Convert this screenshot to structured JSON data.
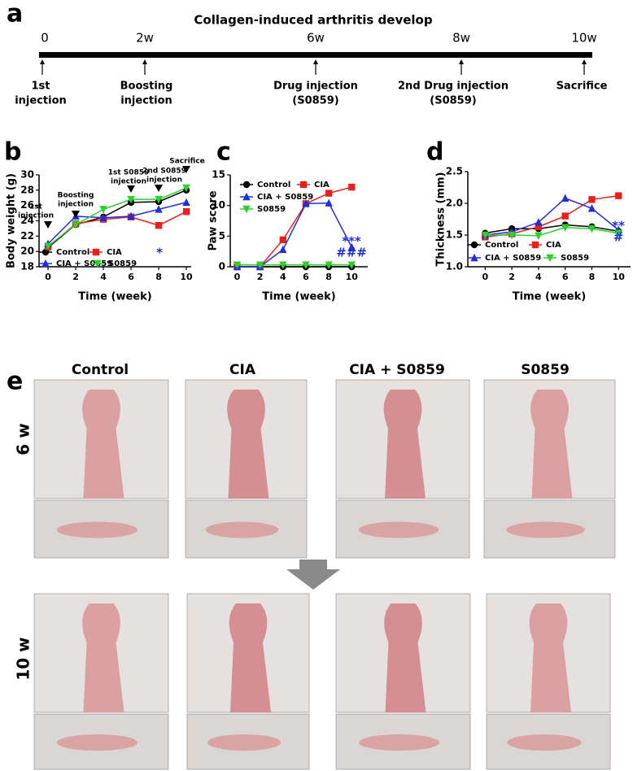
{
  "timeline": {
    "label": "a",
    "title": "Collagen-induced arthritis develop",
    "ticks": [
      "0",
      "2w",
      "6w",
      "8w",
      "10w"
    ],
    "events": [
      {
        "lines": [
          "1st",
          "injection"
        ]
      },
      {
        "lines": [
          "Boosting",
          "injection"
        ]
      },
      {
        "lines": [
          "Drug injection",
          "(S0859)"
        ]
      },
      {
        "lines": [
          "2nd Drug injection",
          "(S0859)"
        ]
      },
      {
        "lines": [
          "Sacrifice"
        ]
      }
    ]
  },
  "chart_data": [
    {
      "type": "line",
      "label": "b",
      "x_label": "Time (week)",
      "y_label": "Body weight (g)",
      "x": [
        0,
        2,
        4,
        6,
        8,
        10
      ],
      "xlim": [
        -0.65,
        10.35
      ],
      "xticks": [
        0,
        2,
        4,
        6,
        8,
        10
      ],
      "ylim": [
        18,
        30
      ],
      "yticks": [
        18,
        20,
        22,
        24,
        26,
        28,
        30
      ],
      "series": [
        {
          "name": "Control",
          "color": "#000000",
          "marker": "circle",
          "values": [
            20.5,
            23.5,
            24.5,
            26.4,
            26.5,
            28.0
          ]
        },
        {
          "name": "CIA",
          "color": "#e8201c",
          "marker": "square",
          "values": [
            20.6,
            23.6,
            24.2,
            24.5,
            23.4,
            25.2
          ]
        },
        {
          "name": "CIA + S0859",
          "color": "#1f2fe0",
          "marker": "triangle-up",
          "values": [
            21.0,
            24.6,
            24.4,
            24.6,
            25.5,
            26.4
          ]
        },
        {
          "name": "S0859",
          "color": "#2bd12b",
          "marker": "triangle-down",
          "values": [
            20.7,
            23.5,
            25.5,
            26.8,
            26.8,
            28.3
          ]
        }
      ],
      "annotations": [
        {
          "lines": [
            "1st",
            "injection"
          ],
          "color": "#000000"
        },
        {
          "lines": [
            "Boosting",
            "injection"
          ],
          "color": "#000000"
        },
        {
          "lines": [
            "1st S0859",
            "injection"
          ],
          "color": "#000000"
        },
        {
          "lines": [
            "2nd S0859",
            "injection"
          ],
          "color": "#000000"
        },
        {
          "lines": [
            "Sacrifice"
          ],
          "color": "#000000"
        },
        {
          "lines": [
            "*"
          ],
          "color": "#1f2fe0"
        }
      ]
    },
    {
      "type": "line",
      "label": "c",
      "x_label": "Time (week)",
      "y_label": "Paw score",
      "x": [
        0,
        2,
        4,
        6,
        8,
        10
      ],
      "xlim": [
        -0.6,
        11.4
      ],
      "xticks": [
        0,
        2,
        4,
        6,
        8,
        10
      ],
      "ylim": [
        0,
        15
      ],
      "yticks": [
        0,
        5,
        10,
        15
      ],
      "series": [
        {
          "name": "Control",
          "color": "#000000",
          "marker": "circle",
          "values": [
            0,
            0,
            0,
            0,
            0,
            0
          ]
        },
        {
          "name": "CIA",
          "color": "#e8201c",
          "marker": "square",
          "values": [
            0,
            0,
            4.4,
            10.3,
            12.0,
            13.0
          ]
        },
        {
          "name": "CIA + S0859",
          "color": "#1f2fe0",
          "marker": "triangle-up",
          "values": [
            0,
            0,
            2.8,
            10.3,
            10.4,
            3.2
          ]
        },
        {
          "name": "S0859",
          "color": "#2bd12b",
          "marker": "triangle-down",
          "values": [
            0.3,
            0.3,
            0.3,
            0.3,
            0.3,
            0.3
          ]
        }
      ],
      "annotations": [
        {
          "lines": [
            "***"
          ],
          "color": "#1f2fe0"
        },
        {
          "lines": [
            "###"
          ],
          "color": "#1f2fe0"
        }
      ]
    },
    {
      "type": "line",
      "label": "d",
      "x_label": "Time (week)",
      "y_label": "Thickness (mm)",
      "x": [
        0,
        2,
        4,
        6,
        8,
        10
      ],
      "xlim": [
        -1.3,
        10.9
      ],
      "xticks": [
        0,
        2,
        4,
        6,
        8,
        10
      ],
      "ylim": [
        1.0,
        2.5
      ],
      "yticks": [
        {
          "value": 1.0,
          "label": "1.0"
        },
        1.5,
        {
          "value": 2.0,
          "label": "2.0"
        },
        2.5
      ],
      "series": [
        {
          "name": "Control",
          "color": "#000000",
          "marker": "circle",
          "values": [
            1.53,
            1.6,
            1.6,
            1.66,
            1.63,
            1.56
          ]
        },
        {
          "name": "CIA",
          "color": "#e8201c",
          "marker": "square",
          "values": [
            1.47,
            1.52,
            1.63,
            1.8,
            2.06,
            2.12
          ]
        },
        {
          "name": "CIA + S0859",
          "color": "#1f2fe0",
          "marker": "triangle-up",
          "values": [
            1.5,
            1.55,
            1.7,
            2.08,
            1.92,
            1.58
          ]
        },
        {
          "name": "S0859",
          "color": "#2bd12b",
          "marker": "triangle-down",
          "values": [
            1.5,
            1.5,
            1.49,
            1.62,
            1.6,
            1.53
          ]
        }
      ],
      "annotations": [
        {
          "lines": [
            "**"
          ],
          "color": "#1f2fe0"
        },
        {
          "lines": [
            "#"
          ],
          "color": "#1f2fe0"
        }
      ]
    }
  ],
  "photos": {
    "label": "e",
    "columns": [
      "Control",
      "CIA",
      "CIA + S0859",
      "S0859"
    ],
    "rows": [
      "6 w",
      "10 w"
    ]
  }
}
